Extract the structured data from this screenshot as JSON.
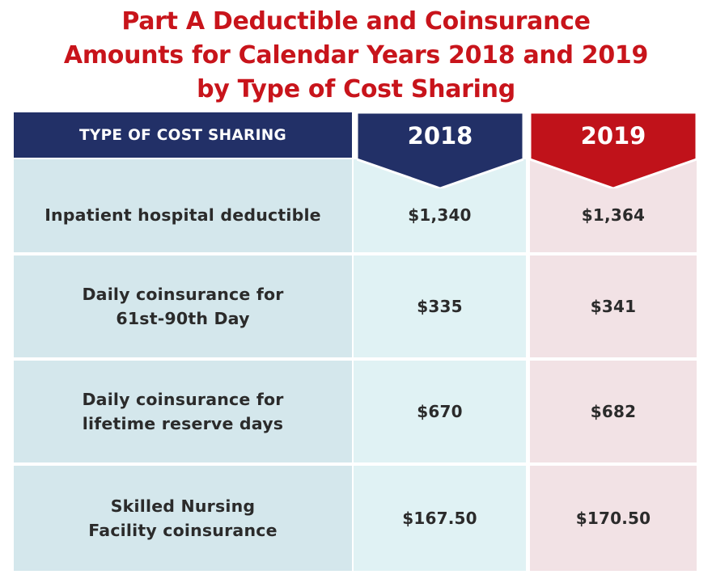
{
  "title": {
    "line1": "Part A Deductible and Coinsurance",
    "line2": "Amounts for Calendar Years 2018 and 2019",
    "line3": "by Type of Cost Sharing"
  },
  "table": {
    "header": {
      "type_label": "TYPE OF COST SHARING",
      "year_2018": "2018",
      "year_2019": "2019"
    },
    "rows": [
      {
        "label_line1": "Inpatient hospital deductible",
        "label_line2": "",
        "v2018": "$1,340",
        "v2019": "$1,364"
      },
      {
        "label_line1": "Daily coinsurance for",
        "label_line2": "61st-90th Day",
        "v2018": "$335",
        "v2019": "$341"
      },
      {
        "label_line1": "Daily coinsurance for",
        "label_line2": "lifetime reserve days",
        "v2018": "$670",
        "v2019": "$682"
      },
      {
        "label_line1": "Skilled Nursing",
        "label_line2": "Facility coinsurance",
        "v2018": "$167.50",
        "v2019": "$170.50"
      }
    ]
  },
  "colors": {
    "title_red": "#c8141b",
    "header_navy": "#223067",
    "header_red": "#c0121a",
    "label_bg": "#d4e7ec",
    "col2018_bg": "#e0f2f4",
    "col2019_bg": "#f2e2e5"
  }
}
